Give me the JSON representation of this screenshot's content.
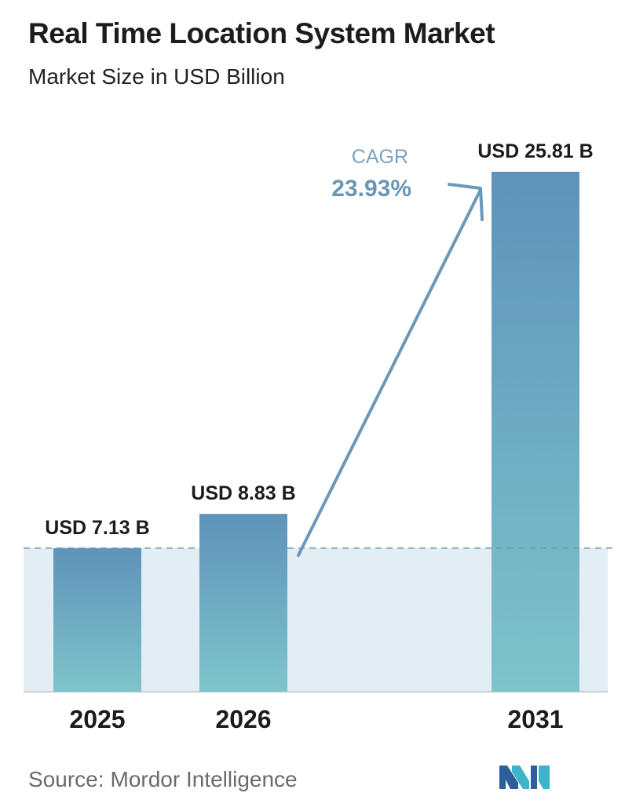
{
  "header": {
    "title": "Real Time Location System Market",
    "subtitle": "Market Size in USD Billion"
  },
  "chart_data": {
    "type": "bar",
    "title": "Real Time Location System Market",
    "subtitle": "Market Size in USD Billion",
    "categories": [
      "2025",
      "2026",
      "2031"
    ],
    "values": [
      7.13,
      8.83,
      25.81
    ],
    "data_labels": [
      "USD 7.13 B",
      "USD 8.83 B",
      "USD 25.81 B"
    ],
    "ylim": [
      0,
      27
    ],
    "grid": false,
    "annotation": {
      "label": "CAGR",
      "value": "23.93%"
    },
    "colors": {
      "bar_top": "#5f93ba",
      "bar_bottom": "#7ec4cb",
      "band": "#e3edf4",
      "reference_line": "#6a96b6",
      "arrow": "#6a99bc",
      "cagr_label": "#7aa2c0",
      "cagr_value": "#6a96b6",
      "baseline": "#d0d0d0"
    }
  },
  "footer": {
    "source_label": "Source:",
    "source_name": "Mordor Intelligence",
    "logo": "mordor-intelligence-logo"
  }
}
